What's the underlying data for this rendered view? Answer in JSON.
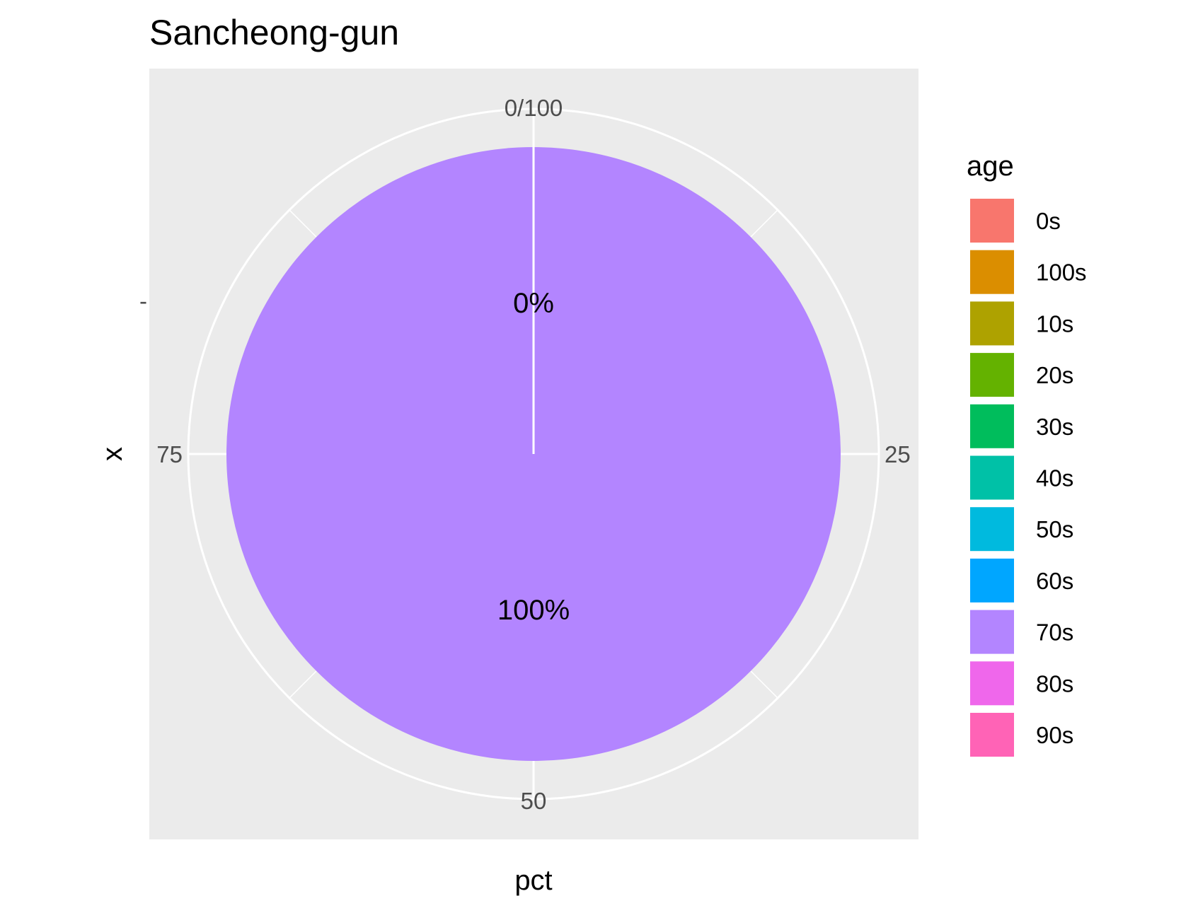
{
  "chart_data": {
    "type": "pie",
    "title": "Sancheong-gun",
    "xlabel": "pct",
    "ylabel": "x",
    "y_tick_label": "-",
    "angular_axis": {
      "ticks": [
        0,
        25,
        50,
        75
      ],
      "labels": [
        "0/100",
        "25",
        "50",
        "75"
      ],
      "range": [
        0,
        100
      ]
    },
    "slices": [
      {
        "category": "70s",
        "value": 100,
        "label": "100%"
      },
      {
        "category": "0s",
        "value": 0,
        "label": "0%"
      }
    ],
    "legend": {
      "title": "age",
      "position": "right",
      "items": [
        {
          "label": "0s",
          "color": "#F8766D"
        },
        {
          "label": "100s",
          "color": "#DB8E00"
        },
        {
          "label": "10s",
          "color": "#AEA200"
        },
        {
          "label": "20s",
          "color": "#64B200"
        },
        {
          "label": "30s",
          "color": "#00BD5C"
        },
        {
          "label": "40s",
          "color": "#00C1A7"
        },
        {
          "label": "50s",
          "color": "#00BADE"
        },
        {
          "label": "60s",
          "color": "#00A6FF"
        },
        {
          "label": "70s",
          "color": "#B385FF"
        },
        {
          "label": "80s",
          "color": "#EF67EB"
        },
        {
          "label": "90s",
          "color": "#FF63B6"
        }
      ]
    },
    "panel_background": "#EBEBEB",
    "grid_color": "#FFFFFF",
    "grid": true
  }
}
